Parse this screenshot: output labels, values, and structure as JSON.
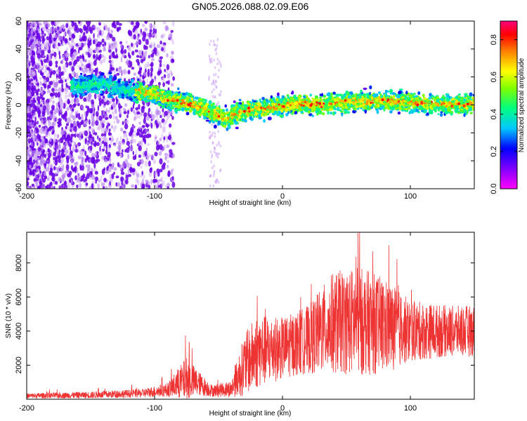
{
  "figure": {
    "title": "GN05.2026.088.02.09.E06"
  },
  "chart_data": [
    {
      "type": "heatmap",
      "xlabel": "Height of straight line (km)",
      "ylabel": "Frequency (Hz)",
      "xlim": [
        -200,
        150
      ],
      "ylim": [
        -60,
        60
      ],
      "xticks": [
        -200,
        -100,
        0,
        100
      ],
      "yticks": [
        -60,
        -40,
        -20,
        0,
        20,
        40,
        60
      ],
      "colorbar": {
        "label": "Normalized spectral amplitude",
        "range": [
          0,
          0.9
        ],
        "ticks": [
          0.0,
          0.2,
          0.4,
          0.6,
          0.8
        ],
        "colormap": "rainbow (magenta-blue-cyan-green-yellow-red-pink)"
      },
      "ridge_center_hz": [
        {
          "x": -160,
          "y": 14
        },
        {
          "x": -140,
          "y": 15
        },
        {
          "x": -120,
          "y": 10
        },
        {
          "x": -100,
          "y": 8
        },
        {
          "x": -85,
          "y": 3
        },
        {
          "x": -70,
          "y": 0
        },
        {
          "x": -55,
          "y": -5
        },
        {
          "x": -45,
          "y": -10
        },
        {
          "x": -30,
          "y": -4
        },
        {
          "x": -10,
          "y": -2
        },
        {
          "x": 10,
          "y": 1
        },
        {
          "x": 30,
          "y": 0
        },
        {
          "x": 50,
          "y": 2
        },
        {
          "x": 80,
          "y": 3
        },
        {
          "x": 110,
          "y": 1
        },
        {
          "x": 150,
          "y": 0
        }
      ]
    },
    {
      "type": "line",
      "xlabel": "Height of straight line (km)",
      "ylabel": "SNR (10 * v/v)",
      "xlim": [
        -200,
        150
      ],
      "ylim": [
        0,
        9800
      ],
      "xticks": [
        -200,
        -100,
        0,
        100
      ],
      "yticks": [
        2000,
        4000,
        6000,
        8000
      ],
      "series": [
        {
          "name": "SNR",
          "color": "#ee3333",
          "envelope": [
            {
              "x": -200,
              "mean": 200,
              "spread": 150
            },
            {
              "x": -150,
              "mean": 250,
              "spread": 200
            },
            {
              "x": -110,
              "mean": 350,
              "spread": 250
            },
            {
              "x": -90,
              "mean": 550,
              "spread": 400
            },
            {
              "x": -75,
              "mean": 1200,
              "spread": 1300
            },
            {
              "x": -65,
              "mean": 900,
              "spread": 700
            },
            {
              "x": -55,
              "mean": 500,
              "spread": 350
            },
            {
              "x": -40,
              "mean": 600,
              "spread": 500
            },
            {
              "x": -30,
              "mean": 2000,
              "spread": 1800
            },
            {
              "x": -20,
              "mean": 2800,
              "spread": 2200
            },
            {
              "x": 0,
              "mean": 3000,
              "spread": 1800
            },
            {
              "x": 20,
              "mean": 3500,
              "spread": 2000
            },
            {
              "x": 40,
              "mean": 4500,
              "spread": 3000
            },
            {
              "x": 60,
              "mean": 4600,
              "spread": 3200
            },
            {
              "x": 80,
              "mean": 4300,
              "spread": 2800
            },
            {
              "x": 100,
              "mean": 4000,
              "spread": 1800
            },
            {
              "x": 130,
              "mean": 4000,
              "spread": 1500
            },
            {
              "x": 150,
              "mean": 4000,
              "spread": 1500
            }
          ]
        }
      ]
    }
  ]
}
